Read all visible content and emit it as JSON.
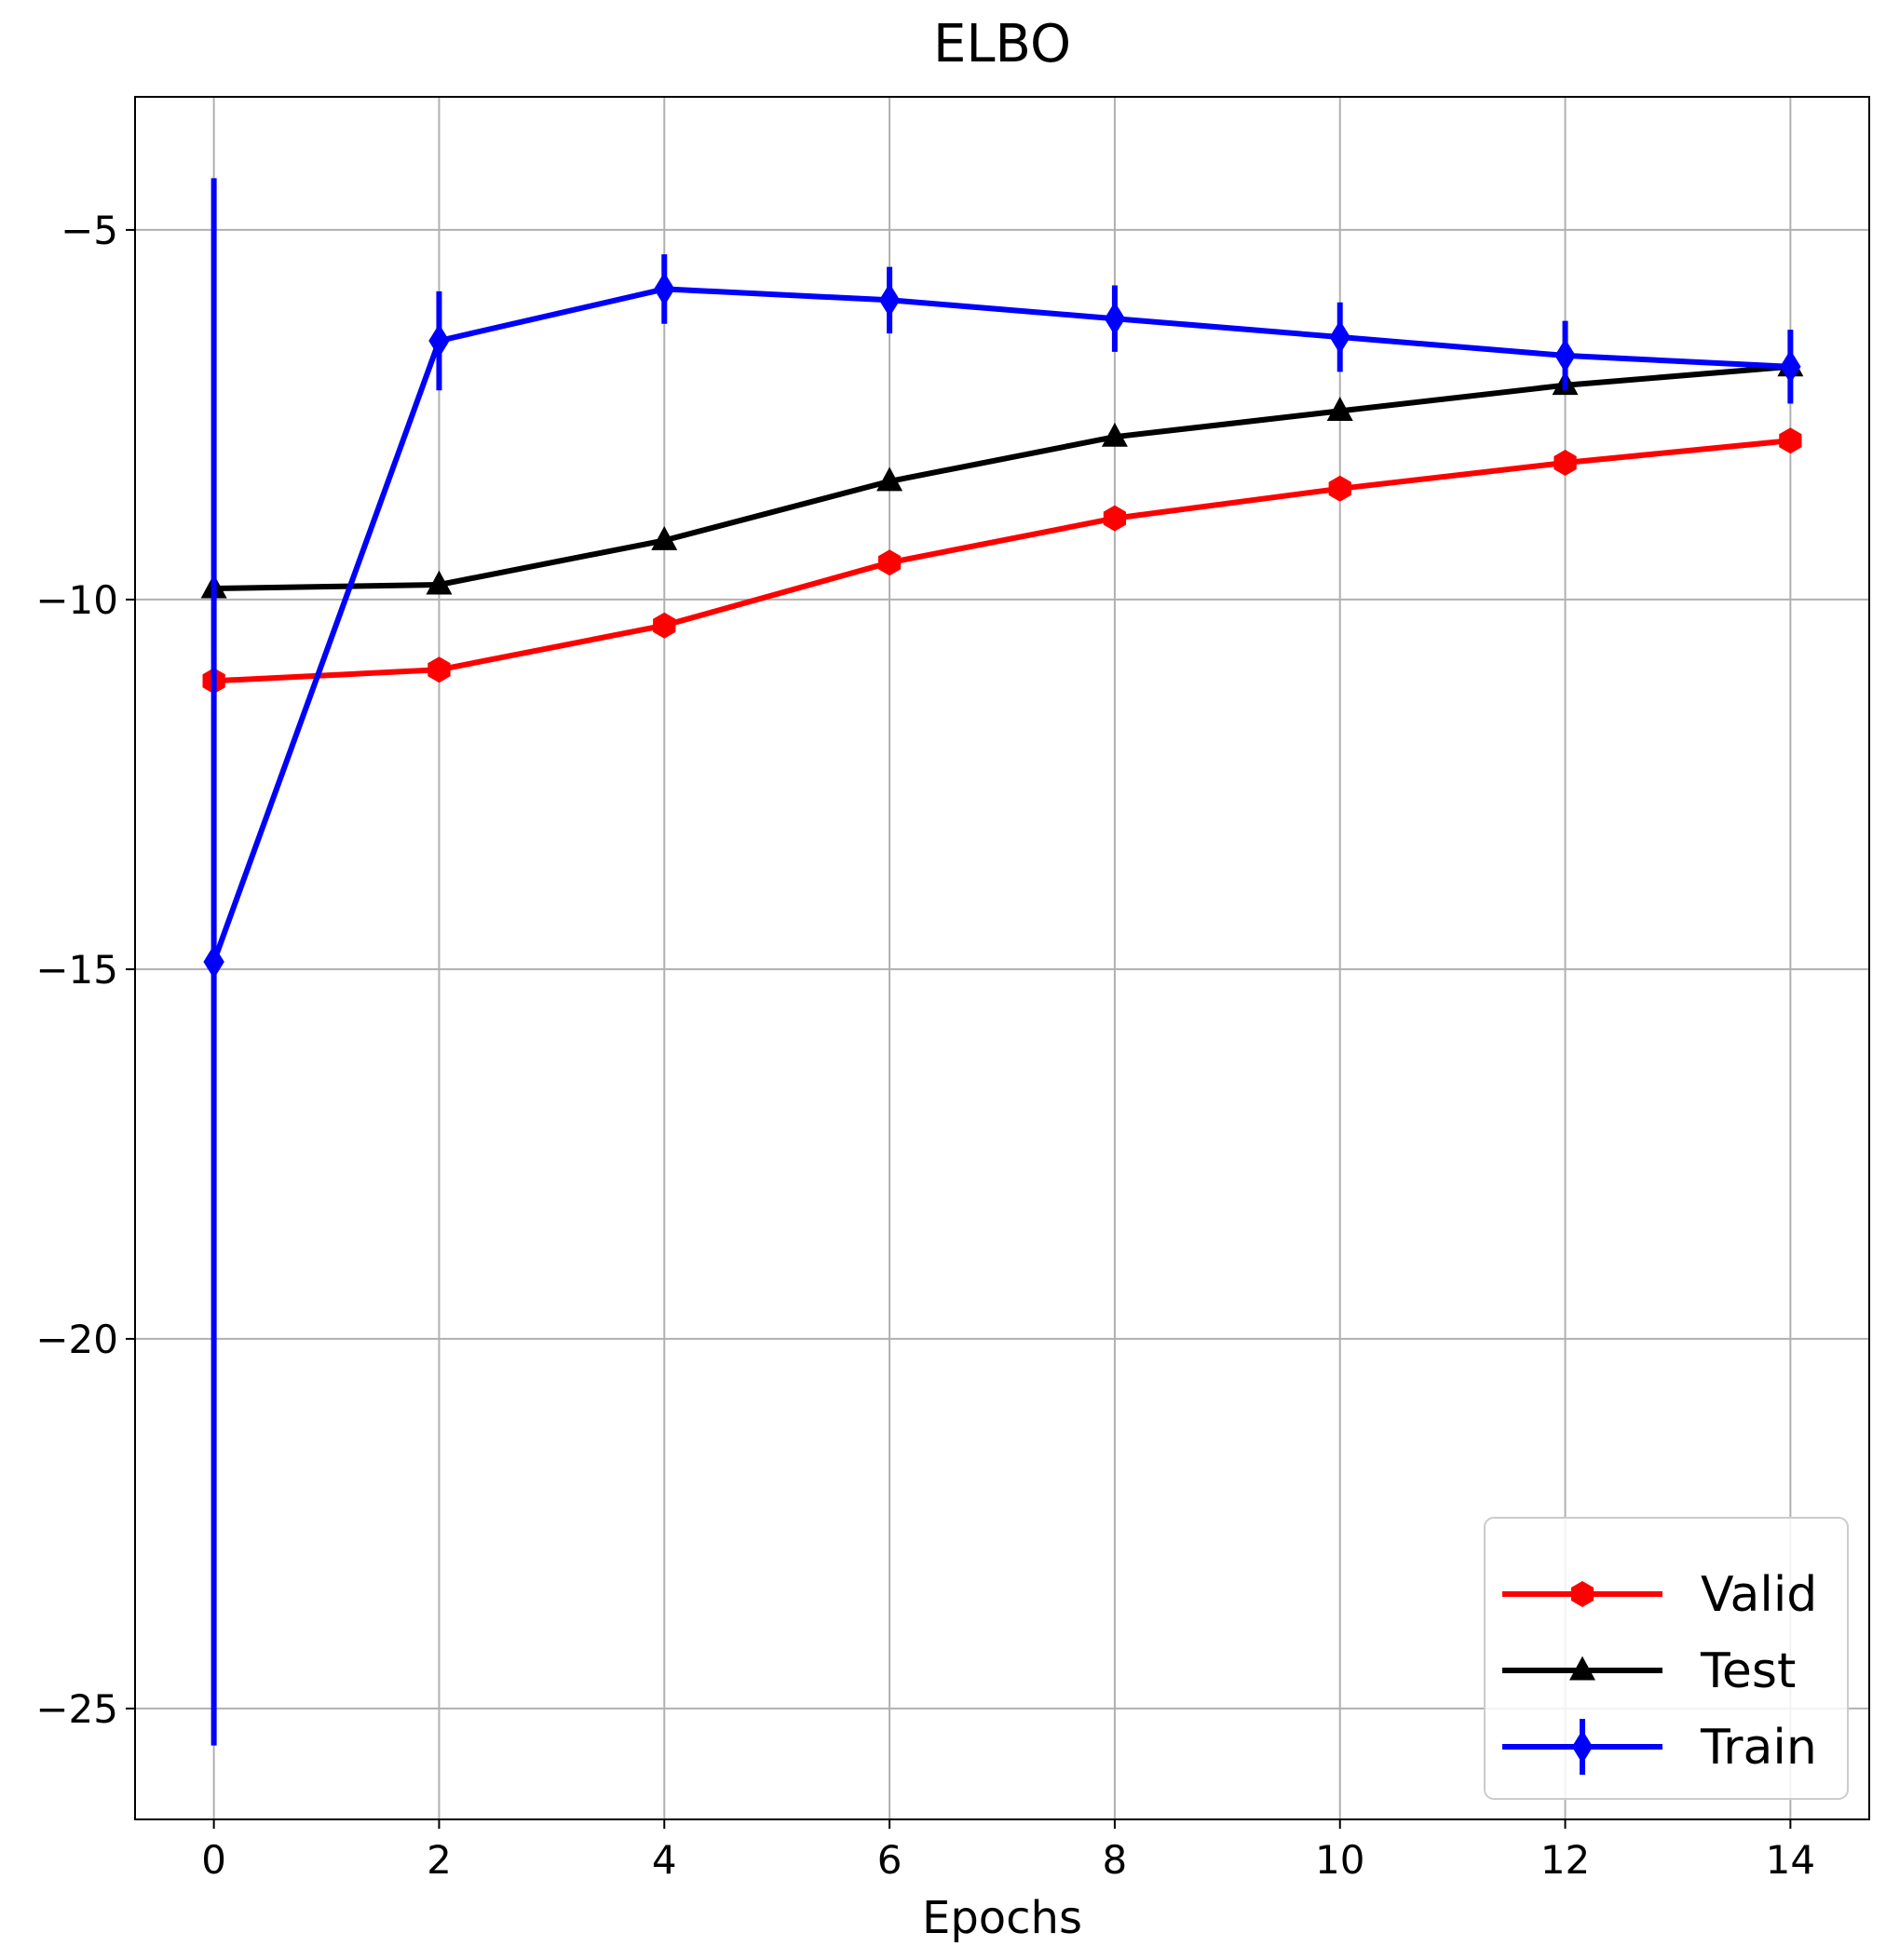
{
  "chart_data": {
    "type": "line",
    "title": "ELBO",
    "xlabel": "Epochs",
    "ylabel": "",
    "xlim": [
      -0.7,
      14.7
    ],
    "ylim": [
      -26.5,
      -3.2
    ],
    "xticks": [
      0,
      2,
      4,
      6,
      8,
      10,
      12,
      14
    ],
    "xtick_labels": [
      "0",
      "2",
      "4",
      "6",
      "8",
      "10",
      "12",
      "14"
    ],
    "yticks": [
      -5,
      -10,
      -15,
      -20,
      -25
    ],
    "ytick_labels": [
      "−5",
      "−10",
      "−15",
      "−20",
      "−25"
    ],
    "grid": true,
    "legend_position": "lower-right",
    "x": [
      0,
      2,
      4,
      6,
      8,
      10,
      12,
      14
    ],
    "series": [
      {
        "name": "Valid",
        "color": "#ff0000",
        "marker": "hexagon",
        "values": [
          -11.1,
          -10.95,
          -10.35,
          -9.5,
          -8.9,
          -8.5,
          -8.15,
          -7.85
        ]
      },
      {
        "name": "Test",
        "color": "#000000",
        "marker": "triangle",
        "values": [
          -9.85,
          -9.8,
          -9.2,
          -8.4,
          -7.8,
          -7.45,
          -7.1,
          -6.85
        ]
      },
      {
        "name": "Train",
        "color": "#0000ff",
        "marker": "diamond",
        "values": [
          -14.9,
          -6.5,
          -5.8,
          -5.95,
          -6.2,
          -6.45,
          -6.7,
          -6.85
        ],
        "error": [
          10.6,
          0.67,
          0.47,
          0.45,
          0.45,
          0.47,
          0.47,
          0.5
        ]
      }
    ]
  }
}
